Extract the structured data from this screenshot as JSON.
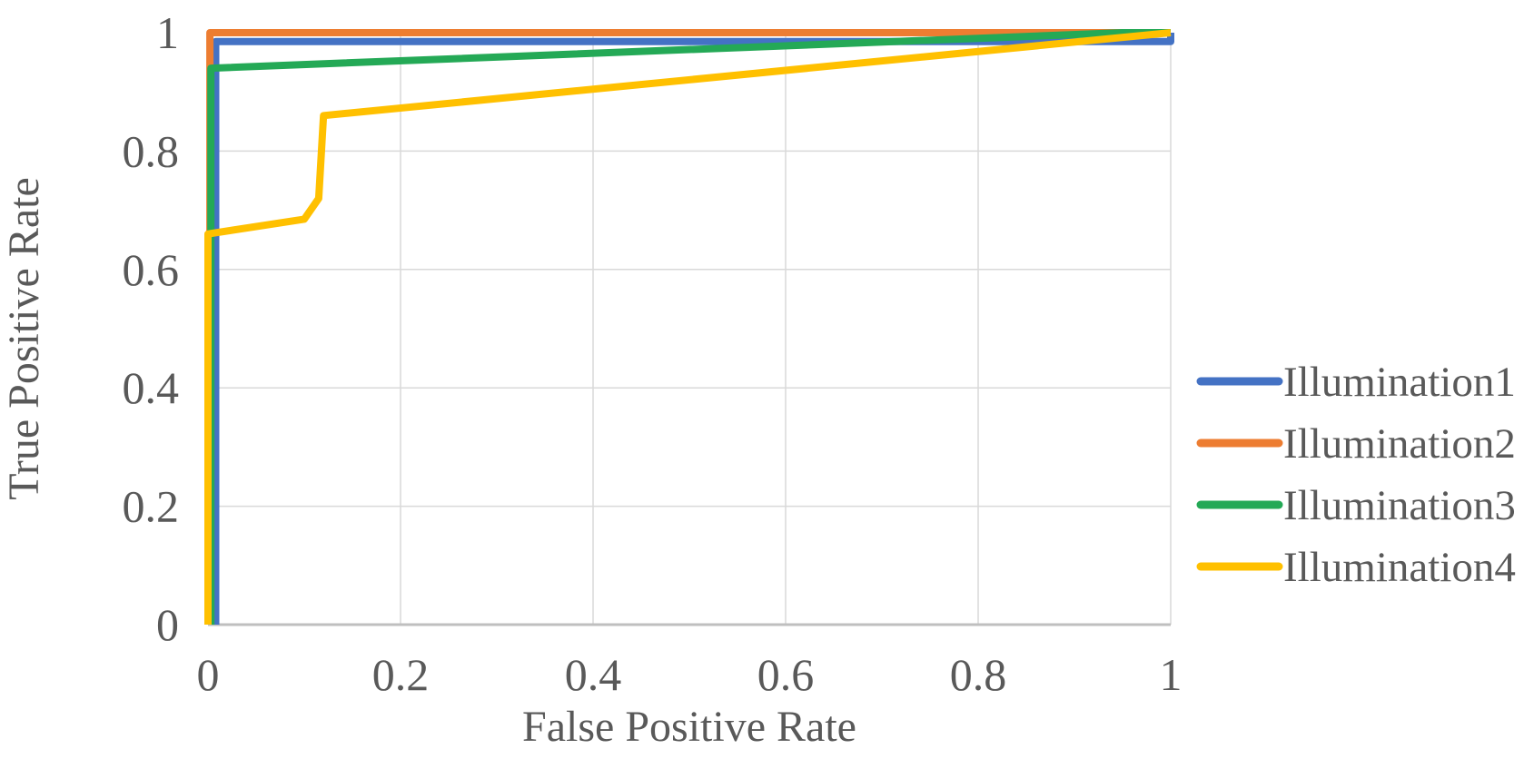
{
  "chart_data": {
    "type": "line",
    "title": "",
    "xlabel": "False Positive Rate",
    "ylabel": "True Positive Rate",
    "xlim": [
      0,
      1
    ],
    "ylim": [
      0,
      1
    ],
    "grid": true,
    "legend_position": "right-outside",
    "grid_color": "#d9d9d9",
    "axis_line_color": "#bfbfbf",
    "text_color": "#595959",
    "x_ticks": [
      0,
      0.2,
      0.4,
      0.6,
      0.8,
      1
    ],
    "x_tick_labels": [
      "0",
      "0.2",
      "0.4",
      "0.6",
      "0.8",
      "1"
    ],
    "y_ticks": [
      0,
      0.2,
      0.4,
      0.6,
      0.8,
      1
    ],
    "y_tick_labels": [
      "0",
      "0.2",
      "0.4",
      "0.6",
      "0.8",
      "1"
    ],
    "series": [
      {
        "name": "Illumination1",
        "color": "#4472c4",
        "points": [
          [
            0.008,
            0
          ],
          [
            0.008,
            0.985
          ],
          [
            1,
            0.985
          ],
          [
            1,
            1
          ]
        ]
      },
      {
        "name": "Illumination2",
        "color": "#ed7d31",
        "points": [
          [
            0.002,
            0
          ],
          [
            0.002,
            1
          ],
          [
            1,
            1
          ]
        ]
      },
      {
        "name": "Illumination3",
        "color": "#24a956",
        "points": [
          [
            0.003,
            0
          ],
          [
            0.003,
            0.94
          ],
          [
            0.95,
            1
          ],
          [
            1,
            1
          ]
        ]
      },
      {
        "name": "Illumination4",
        "color": "#ffc000",
        "points": [
          [
            0,
            0
          ],
          [
            0,
            0.66
          ],
          [
            0.1,
            0.685
          ],
          [
            0.115,
            0.72
          ],
          [
            0.12,
            0.86
          ],
          [
            1,
            1
          ]
        ]
      }
    ]
  }
}
